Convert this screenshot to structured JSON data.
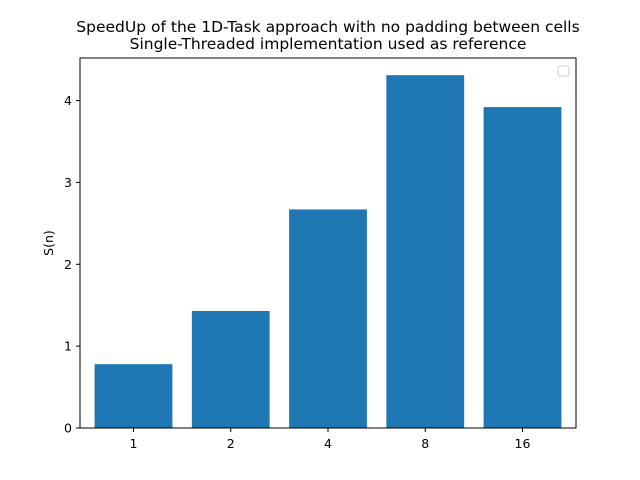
{
  "chart_data": {
    "type": "bar",
    "title": "SpeedUp of the 1D-Task approach with no padding between cells",
    "subtitle": "Single-Threaded implementation used as reference",
    "xlabel": "",
    "ylabel": "S(n)",
    "categories": [
      "1",
      "2",
      "4",
      "8",
      "16"
    ],
    "values": [
      0.78,
      1.43,
      2.67,
      4.31,
      3.92
    ],
    "ylim": [
      0,
      4.52
    ],
    "yticks": [
      0,
      1,
      2,
      3,
      4
    ],
    "bar_color": "#1f77b4",
    "grid": false,
    "legend": {
      "position": "top-right",
      "entries": []
    }
  }
}
